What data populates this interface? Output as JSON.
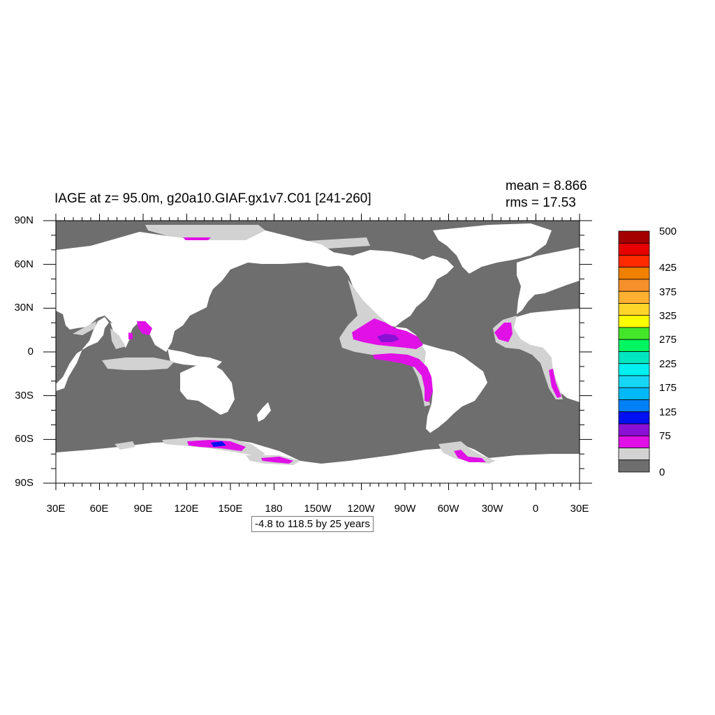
{
  "title": "IAGE at z=  95.0m, g20a10.GIAF.gx1v7.C01 [241-260]",
  "stats": {
    "mean": "mean = 8.866",
    "rms": "rms = 17.53"
  },
  "lat_ticks": [
    "90N",
    "60N",
    "30N",
    "0",
    "30S",
    "60S",
    "90S"
  ],
  "lon_ticks": [
    "30E",
    "60E",
    "90E",
    "120E",
    "150E",
    "180",
    "150W",
    "120W",
    "90W",
    "60W",
    "30W",
    "0",
    "30E"
  ],
  "colorbar": {
    "labels": [
      "500",
      "425",
      "375",
      "325",
      "275",
      "225",
      "175",
      "125",
      "75",
      "0"
    ],
    "colors": [
      "#a50000",
      "#e60000",
      "#ff2a00",
      "#f08000",
      "#f5902a",
      "#ffb030",
      "#ffd52a",
      "#ffff00",
      "#44e62a",
      "#00f560",
      "#00e6c0",
      "#00f0f0",
      "#16d6f5",
      "#00b8f5",
      "#0080f5",
      "#0010f0",
      "#8a10d6",
      "#e010e6",
      "#d2d2d2",
      "#6e6e6e"
    ]
  },
  "info_box": "-4.8 to 118.5 by 25 years",
  "colors": {
    "ocean_background": "#6e6e6e",
    "land": "#ffffff",
    "light_age": "#d2d2d2",
    "magenta": "#e010e6",
    "purple": "#8a10d6",
    "blue": "#0010f0"
  }
}
